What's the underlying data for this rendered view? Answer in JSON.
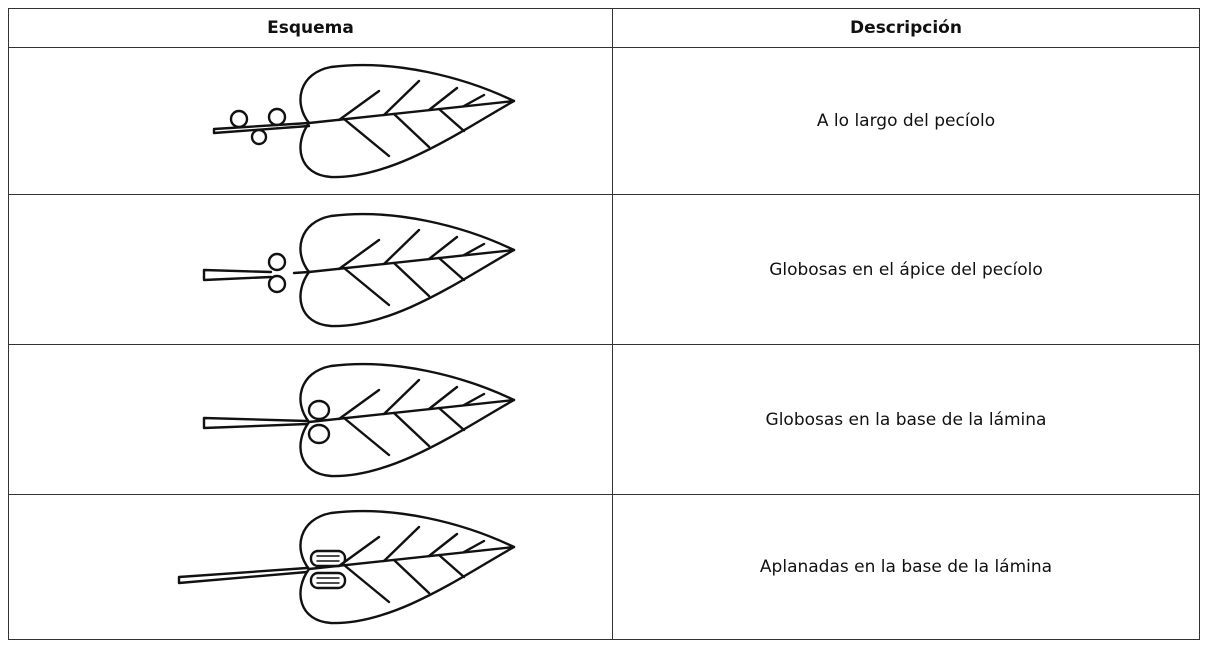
{
  "table": {
    "header": [
      "Esquema",
      "Descripción"
    ],
    "rows": [
      {
        "description": "A lo largo del pecíolo"
      },
      {
        "description": "Globosas en el ápice del pecíolo"
      },
      {
        "description": "Globosas en la base de la lámina"
      },
      {
        "description": "Aplanadas en la base de la lámina"
      }
    ]
  }
}
